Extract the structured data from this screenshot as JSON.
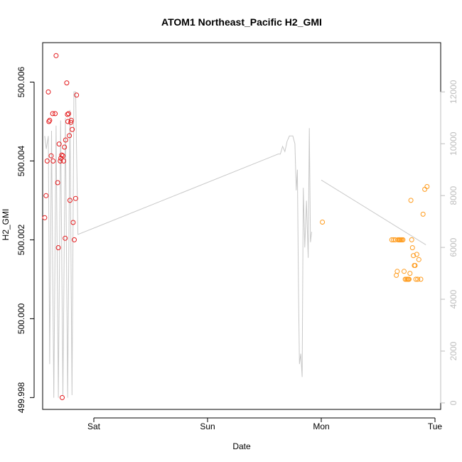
{
  "chart_data": {
    "type": "scatter",
    "title": "ATOM1 Northeast_Pacific H2_GMI",
    "xlabel": "Date",
    "ylabel": "H2_GMI",
    "x_unit": "days since Fri 00:00 (axis ticks Sat..Tue)",
    "x_ticks": [
      {
        "value": 1,
        "label": "Sat"
      },
      {
        "value": 2,
        "label": "Sun"
      },
      {
        "value": 3,
        "label": "Mon"
      },
      {
        "value": 4,
        "label": "Tue"
      }
    ],
    "xlim": [
      0.55,
      4.05
    ],
    "ylim": [
      499.9977,
      500.007
    ],
    "y_ticks": [
      {
        "value": 499.998,
        "label": "499.998"
      },
      {
        "value": 500.0,
        "label": "500.000"
      },
      {
        "value": 500.002,
        "label": "500.002"
      },
      {
        "value": 500.004,
        "label": "500.004"
      },
      {
        "value": 500.006,
        "label": "500.006"
      }
    ],
    "y2lim": [
      -250,
      13900
    ],
    "y2_ticks": [
      {
        "value": 0,
        "label": "0"
      },
      {
        "value": 2000,
        "label": "2000"
      },
      {
        "value": 4000,
        "label": "4000"
      },
      {
        "value": 6000,
        "label": "6000"
      },
      {
        "value": 8000,
        "label": "8000"
      },
      {
        "value": 10000,
        "label": "10000"
      },
      {
        "value": 12000,
        "label": "12000"
      }
    ],
    "grid": false,
    "legend": "none",
    "series": [
      {
        "color": "#e41a1c",
        "points": [
          [
            0.568,
            500.00256
          ],
          [
            0.58,
            500.00312
          ],
          [
            0.59,
            500.004
          ],
          [
            0.6,
            500.00575
          ],
          [
            0.605,
            500.005
          ],
          [
            0.612,
            500.00503
          ],
          [
            0.625,
            500.00413
          ],
          [
            0.638,
            500.0052
          ],
          [
            0.642,
            500.004
          ],
          [
            0.66,
            500.0052
          ],
          [
            0.668,
            500.00667
          ],
          [
            0.682,
            500.00345
          ],
          [
            0.688,
            500.0018
          ],
          [
            0.695,
            500.00443
          ],
          [
            0.705,
            500.004
          ],
          [
            0.71,
            500.00407
          ],
          [
            0.718,
            500.00415
          ],
          [
            0.722,
            499.998
          ],
          [
            0.728,
            500.00413
          ],
          [
            0.735,
            500.004
          ],
          [
            0.742,
            500.00435
          ],
          [
            0.748,
            500.00204
          ],
          [
            0.752,
            500.00453
          ],
          [
            0.762,
            500.00598
          ],
          [
            0.768,
            500.00518
          ],
          [
            0.772,
            500.005
          ],
          [
            0.778,
            500.0052
          ],
          [
            0.785,
            500.00464
          ],
          [
            0.79,
            500.003
          ],
          [
            0.798,
            500.00498
          ],
          [
            0.802,
            500.00503
          ],
          [
            0.81,
            500.0048
          ],
          [
            0.818,
            500.00244
          ],
          [
            0.828,
            500.002
          ],
          [
            0.84,
            500.00305
          ],
          [
            0.848,
            500.00567
          ]
        ]
      },
      {
        "color": "#ff9b1c",
        "points": [
          [
            3.01,
            500.00245
          ],
          [
            3.62,
            500.002
          ],
          [
            3.635,
            500.002
          ],
          [
            3.65,
            500.002
          ],
          [
            3.66,
            500.0011
          ],
          [
            3.668,
            500.0012
          ],
          [
            3.675,
            500.002
          ],
          [
            3.685,
            500.002
          ],
          [
            3.692,
            500.002
          ],
          [
            3.7,
            500.002
          ],
          [
            3.708,
            500.002
          ],
          [
            3.718,
            500.002
          ],
          [
            3.728,
            500.0012
          ],
          [
            3.738,
            500.001
          ],
          [
            3.748,
            500.001
          ],
          [
            3.758,
            500.001
          ],
          [
            3.765,
            500.001
          ],
          [
            3.772,
            500.001
          ],
          [
            3.78,
            500.00115
          ],
          [
            3.788,
            500.003
          ],
          [
            3.795,
            500.002
          ],
          [
            3.802,
            500.0018
          ],
          [
            3.81,
            500.0016
          ],
          [
            3.818,
            500.00135
          ],
          [
            3.825,
            500.00135
          ],
          [
            3.832,
            500.001
          ],
          [
            3.84,
            500.00163
          ],
          [
            3.848,
            500.001
          ],
          [
            3.858,
            500.0015
          ],
          [
            3.875,
            500.001
          ],
          [
            3.895,
            500.00265
          ],
          [
            3.91,
            500.00328
          ],
          [
            3.93,
            500.00335
          ]
        ]
      },
      {
        "color": "#c8c8c8",
        "axis": "right",
        "points": [
          [
            0.568,
            10300
          ],
          [
            0.582,
            9800
          ],
          [
            0.6,
            10300
          ],
          [
            0.612,
            1500
          ],
          [
            0.628,
            10500
          ],
          [
            0.648,
            200
          ],
          [
            0.668,
            10700
          ],
          [
            0.688,
            200
          ],
          [
            0.708,
            10900
          ],
          [
            0.728,
            300
          ],
          [
            0.75,
            11000
          ],
          [
            0.77,
            200
          ],
          [
            0.79,
            11300
          ],
          [
            0.808,
            300
          ],
          [
            0.825,
            12000
          ],
          [
            0.84,
            12000
          ],
          [
            0.86,
            6500
          ],
          [
            2.62,
            9600
          ],
          [
            2.64,
            9600
          ],
          [
            2.66,
            9900
          ],
          [
            2.68,
            9700
          ],
          [
            2.7,
            10100
          ],
          [
            2.72,
            10300
          ],
          [
            2.75,
            10300
          ],
          [
            2.768,
            10000
          ],
          [
            2.78,
            8200
          ],
          [
            2.79,
            9000
          ],
          [
            2.8,
            4300
          ],
          [
            2.808,
            1500
          ],
          [
            2.82,
            1900
          ],
          [
            2.832,
            1000
          ],
          [
            2.842,
            8300
          ],
          [
            2.855,
            6000
          ],
          [
            2.87,
            7800
          ],
          [
            2.885,
            5600
          ],
          [
            2.895,
            10600
          ],
          [
            2.905,
            6200
          ],
          [
            2.915,
            6600
          ]
        ]
      },
      {
        "color": "#c8c8c8",
        "axis": "right",
        "points": [
          [
            3.0,
            8600
          ],
          [
            3.92,
            6100
          ]
        ]
      }
    ]
  }
}
